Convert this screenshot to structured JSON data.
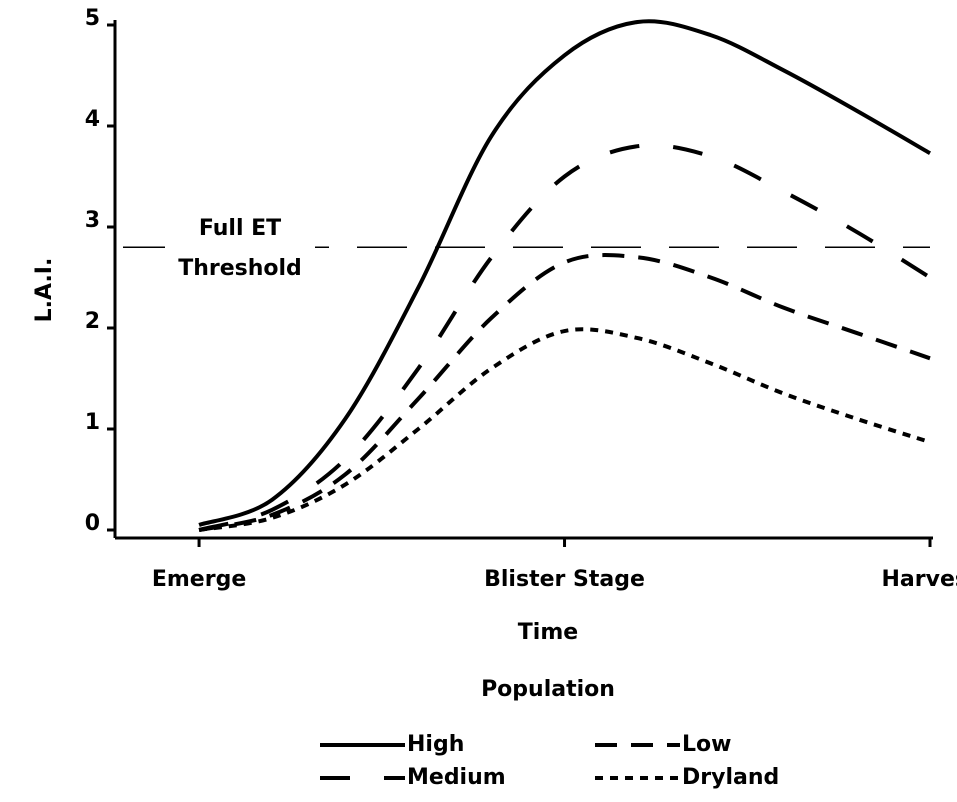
{
  "chart_data": {
    "type": "line",
    "x": [
      0,
      0.2,
      0.4,
      0.6,
      0.8,
      1.0,
      1.2,
      1.4,
      1.6,
      1.8,
      2.0
    ],
    "series": [
      {
        "name": "High",
        "color": "#000000",
        "dash": "solid",
        "values": [
          0.05,
          0.3,
          1.1,
          2.4,
          3.9,
          4.7,
          5.03,
          4.9,
          4.55,
          4.15,
          3.73
        ]
      },
      {
        "name": "Low",
        "color": "#000000",
        "dash": "short",
        "values": [
          0.0,
          0.15,
          0.55,
          1.3,
          2.1,
          2.65,
          2.7,
          2.5,
          2.2,
          1.95,
          1.7
        ]
      },
      {
        "name": "Medium",
        "color": "#000000",
        "dash": "long",
        "values": [
          0.0,
          0.2,
          0.7,
          1.6,
          2.7,
          3.5,
          3.8,
          3.7,
          3.35,
          2.95,
          2.5
        ]
      },
      {
        "name": "Dryland",
        "color": "#000000",
        "dash": "dotted",
        "values": [
          0.0,
          0.12,
          0.45,
          1.0,
          1.6,
          1.97,
          1.9,
          1.65,
          1.35,
          1.1,
          0.87
        ]
      }
    ],
    "xlim": [
      -0.23,
      2
    ],
    "xticks": [
      {
        "value": 0,
        "label": "Emerge"
      },
      {
        "value": 1,
        "label": "Blister Stage"
      },
      {
        "value": 2,
        "label": "Harvest"
      }
    ],
    "ylim": [
      0,
      5
    ],
    "yticks": [
      0,
      1,
      2,
      3,
      4,
      5
    ],
    "x_label": "Time",
    "y_label": "L.A.I.",
    "legend_title": "Population",
    "legend_position": "bottom",
    "threshold": {
      "value": 2.8,
      "label": [
        "Full ET",
        "Threshold"
      ]
    }
  }
}
